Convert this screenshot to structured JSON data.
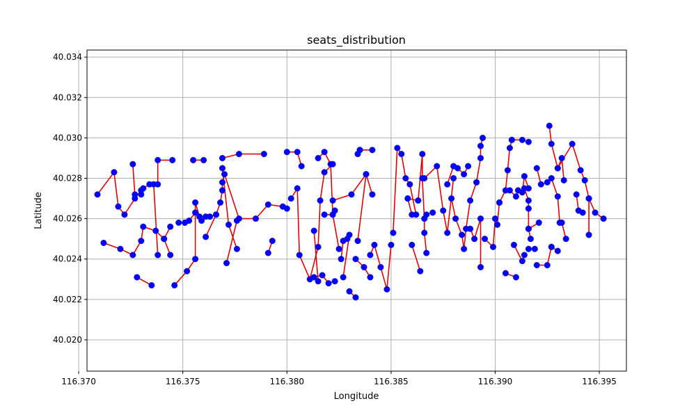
{
  "chart_data": {
    "type": "scatter",
    "title": "seats_distribution",
    "xlabel": "Longitude",
    "ylabel": "Latitude",
    "xlim": [
      116.3704,
      116.3963
    ],
    "ylim": [
      40.01845,
      40.03435
    ],
    "xticks": [
      "116.370",
      "116.375",
      "116.380",
      "116.385",
      "116.390",
      "116.395"
    ],
    "yticks": [
      "40.020",
      "40.022",
      "40.024",
      "40.026",
      "40.028",
      "40.030",
      "40.032",
      "40.034"
    ],
    "grid": true,
    "point_color": "#0000ff",
    "line_color": "#e00000",
    "series": [
      {
        "x": [
          116.3709,
          116.3717,
          116.3719,
          116.3722,
          116.3727,
          116.373,
          116.3731,
          116.3734,
          116.3738,
          116.3738,
          116.3745
        ],
        "y": [
          40.0272,
          40.0283,
          40.0266,
          40.0262,
          40.027,
          40.0274,
          40.0275,
          40.0277,
          40.0277,
          40.0289,
          40.0289
        ]
      },
      {
        "x": [
          116.3726,
          116.3727,
          116.373
        ],
        "y": [
          40.0287,
          40.0272,
          40.0272
        ]
      },
      {
        "x": [
          116.3712,
          116.372,
          116.3726,
          116.373,
          116.3731,
          116.3737,
          116.3741,
          116.3744
        ],
        "y": [
          40.0248,
          40.0245,
          40.0242,
          40.0249,
          40.0256,
          40.0254,
          40.025,
          40.0256
        ]
      },
      {
        "x": [
          116.3741,
          116.3744
        ],
        "y": [
          40.025,
          40.0242
        ]
      },
      {
        "x": [
          116.3728,
          116.3735
        ],
        "y": [
          40.0231,
          40.0227
        ]
      },
      {
        "x": [
          116.3736,
          116.3738
        ],
        "y": [
          40.0277,
          40.0242
        ]
      },
      {
        "x": [
          116.3746,
          116.3752,
          116.3756,
          116.3756,
          116.3758,
          116.3761,
          116.3763,
          116.3766,
          116.3768,
          116.3769,
          116.3769,
          116.377,
          116.3777,
          116.3785,
          116.3791,
          116.3798,
          116.38
        ],
        "y": [
          40.0227,
          40.0234,
          40.024,
          40.0268,
          40.0261,
          40.0261,
          40.0261,
          40.0262,
          40.0268,
          40.0274,
          40.0278,
          40.0282,
          40.026,
          40.026,
          40.0267,
          40.0266,
          40.0265
        ]
      },
      {
        "x": [
          116.3748,
          116.3751,
          116.3753,
          116.3756,
          116.3759
        ],
        "y": [
          40.0258,
          40.0258,
          40.0259,
          40.0263,
          40.0259
        ]
      },
      {
        "x": [
          116.3761,
          116.3766
        ],
        "y": [
          40.0251,
          40.0262
        ]
      },
      {
        "x": [
          116.3755,
          116.376
        ],
        "y": [
          40.0289,
          40.0289
        ]
      },
      {
        "x": [
          116.3769,
          116.3772,
          116.3776
        ],
        "y": [
          40.0285,
          40.0257,
          40.0245
        ]
      },
      {
        "x": [
          116.3769,
          116.3777,
          116.3789
        ],
        "y": [
          40.029,
          40.0292,
          40.0292
        ]
      },
      {
        "x": [
          116.3771,
          116.3776
        ],
        "y": [
          40.0238,
          40.0259
        ]
      },
      {
        "x": [
          116.3791,
          116.3793
        ],
        "y": [
          40.0243,
          40.0249
        ]
      },
      {
        "x": [
          116.38,
          116.3805,
          116.3807
        ],
        "y": [
          40.0293,
          40.0293,
          40.0286
        ]
      },
      {
        "x": [
          116.3802,
          116.3805,
          116.3806,
          116.3811,
          116.3815,
          116.3816,
          116.3818,
          116.3822
        ],
        "y": [
          40.027,
          40.0275,
          40.0242,
          40.023,
          40.0246,
          40.0269,
          40.0283,
          40.0287
        ]
      },
      {
        "x": [
          116.3813,
          116.3817,
          116.382,
          116.3823
        ],
        "y": [
          40.0231,
          40.0232,
          40.0228,
          40.0229
        ]
      },
      {
        "x": [
          116.3813,
          116.3815
        ],
        "y": [
          40.0254,
          40.0229
        ]
      },
      {
        "x": [
          116.3815,
          116.3818,
          116.3821,
          116.3822,
          116.3823
        ],
        "y": [
          40.029,
          40.0293,
          40.0287,
          40.0262,
          40.0264
        ]
      },
      {
        "x": [
          116.3818,
          116.3822,
          116.3825
        ],
        "y": [
          40.0262,
          40.0262,
          40.0245
        ]
      },
      {
        "x": [
          116.3822,
          116.3831,
          116.3838,
          116.3841
        ],
        "y": [
          40.0269,
          40.0272,
          40.0282,
          40.0272
        ]
      },
      {
        "x": [
          116.3826,
          116.3827,
          116.3829
        ],
        "y": [
          40.024,
          40.0249,
          40.025
        ]
      },
      {
        "x": [
          116.3827,
          116.383
        ],
        "y": [
          40.0231,
          40.0252
        ]
      },
      {
        "x": [
          116.383,
          116.3833
        ],
        "y": [
          40.0224,
          40.0221
        ]
      },
      {
        "x": [
          116.3834,
          116.3835
        ],
        "y": [
          40.0292,
          40.0294
        ]
      },
      {
        "x": [
          116.3835,
          116.3841
        ],
        "y": [
          40.0294,
          40.0294
        ]
      },
      {
        "x": [
          116.3833,
          116.3837,
          116.384
        ],
        "y": [
          40.024,
          40.0236,
          40.0231
        ]
      },
      {
        "x": [
          116.384,
          116.3842,
          116.3845,
          116.3848,
          116.385
        ],
        "y": [
          40.0242,
          40.0247,
          40.0236,
          40.0225,
          40.0247
        ]
      },
      {
        "x": [
          116.3834,
          116.3838
        ],
        "y": [
          40.0249,
          40.0282
        ]
      },
      {
        "x": [
          116.3851,
          116.3853,
          116.3855,
          116.3857,
          116.3859,
          116.3862
        ],
        "y": [
          40.0253,
          40.0295,
          40.0292,
          40.028,
          40.0277,
          40.0262
        ]
      },
      {
        "x": [
          116.3858,
          116.386
        ],
        "y": [
          40.027,
          40.0262
        ]
      },
      {
        "x": [
          116.3858,
          116.3863
        ],
        "y": [
          40.027,
          40.0269
        ]
      },
      {
        "x": [
          116.386,
          116.3864
        ],
        "y": [
          40.0247,
          40.0234
        ]
      },
      {
        "x": [
          116.3863,
          116.3865,
          116.3865,
          116.3866,
          116.3866,
          116.3867
        ],
        "y": [
          40.0269,
          40.0292,
          40.028,
          40.026,
          40.0253,
          40.0243
        ]
      },
      {
        "x": [
          116.3866,
          116.3872,
          116.3875,
          116.3877,
          116.388
        ],
        "y": [
          40.028,
          40.0286,
          40.0264,
          40.0253,
          40.028
        ]
      },
      {
        "x": [
          116.3867,
          116.387
        ],
        "y": [
          40.0262,
          40.0263
        ]
      },
      {
        "x": [
          116.3877,
          116.388,
          116.3882,
          116.3885,
          116.3887
        ],
        "y": [
          40.0277,
          40.0286,
          40.0285,
          40.0282,
          40.0286
        ]
      },
      {
        "x": [
          116.3879,
          116.3881,
          116.3884,
          116.3885,
          116.3886,
          116.3888,
          116.3891
        ],
        "y": [
          40.027,
          40.026,
          40.0252,
          40.0245,
          40.0255,
          40.0269,
          40.0278
        ]
      },
      {
        "x": [
          116.3888,
          116.389,
          116.3893,
          116.3893
        ],
        "y": [
          40.0255,
          40.025,
          40.026,
          40.0236
        ]
      },
      {
        "x": [
          116.3891,
          116.3893,
          116.3893,
          116.3894
        ],
        "y": [
          40.0278,
          40.029,
          40.0296,
          40.03
        ]
      },
      {
        "x": [
          116.3895,
          116.3899,
          116.39,
          116.3901,
          116.3902
        ],
        "y": [
          40.025,
          40.0246,
          40.026,
          40.0257,
          40.0268
        ]
      },
      {
        "x": [
          116.3902,
          116.3905,
          116.3906,
          116.3907,
          116.3908
        ],
        "y": [
          40.0268,
          40.0274,
          40.0284,
          40.0295,
          40.0299
        ]
      },
      {
        "x": [
          116.3905,
          116.391
        ],
        "y": [
          40.0233,
          40.0231
        ]
      },
      {
        "x": [
          116.3908,
          116.3913,
          116.3916
        ],
        "y": [
          40.0299,
          40.0299,
          40.0298
        ]
      },
      {
        "x": [
          116.3909,
          116.3913,
          116.3914
        ],
        "y": [
          40.0247,
          40.0239,
          40.0242
        ]
      },
      {
        "x": [
          116.3907,
          116.391,
          116.3911,
          116.3913,
          116.3914,
          116.3916
        ],
        "y": [
          40.0274,
          40.0271,
          40.0274,
          40.0273,
          40.0281,
          40.0275
        ]
      },
      {
        "x": [
          116.3914,
          116.3916,
          116.3916,
          116.3916,
          116.3917
        ],
        "y": [
          40.0275,
          40.0269,
          40.0265,
          40.0255,
          40.025
        ]
      },
      {
        "x": [
          116.3916,
          116.3919
        ],
        "y": [
          40.0245,
          40.0245
        ]
      },
      {
        "x": [
          116.3916,
          116.3921
        ],
        "y": [
          40.0255,
          40.0258
        ]
      },
      {
        "x": [
          116.392,
          116.3922,
          116.3925,
          116.3927,
          116.393,
          116.3931
        ],
        "y": [
          40.0285,
          40.0277,
          40.0278,
          40.028,
          40.0271,
          40.0258
        ]
      },
      {
        "x": [
          116.392,
          116.3925,
          116.3927
        ],
        "y": [
          40.0237,
          40.0237,
          40.0246
        ]
      },
      {
        "x": [
          116.3927,
          116.393
        ],
        "y": [
          40.0246,
          40.0244
        ]
      },
      {
        "x": [
          116.3926,
          116.3927,
          116.393,
          116.3932,
          116.3933
        ],
        "y": [
          40.0306,
          40.0297,
          40.0285,
          40.029,
          40.0279
        ]
      },
      {
        "x": [
          116.3932,
          116.3934
        ],
        "y": [
          40.0258,
          40.025
        ]
      },
      {
        "x": [
          116.393,
          116.3937,
          116.3941,
          116.3943,
          116.3945
        ],
        "y": [
          40.0285,
          40.0297,
          40.0284,
          40.0279,
          40.027
        ]
      },
      {
        "x": [
          116.3939,
          116.394,
          116.3942
        ],
        "y": [
          40.0272,
          40.0264,
          40.0263
        ]
      },
      {
        "x": [
          116.3945,
          116.3945
        ],
        "y": [
          40.027,
          40.0252
        ]
      },
      {
        "x": [
          116.3945,
          116.3948,
          116.3952
        ],
        "y": [
          40.027,
          40.0263,
          40.026
        ]
      }
    ]
  }
}
